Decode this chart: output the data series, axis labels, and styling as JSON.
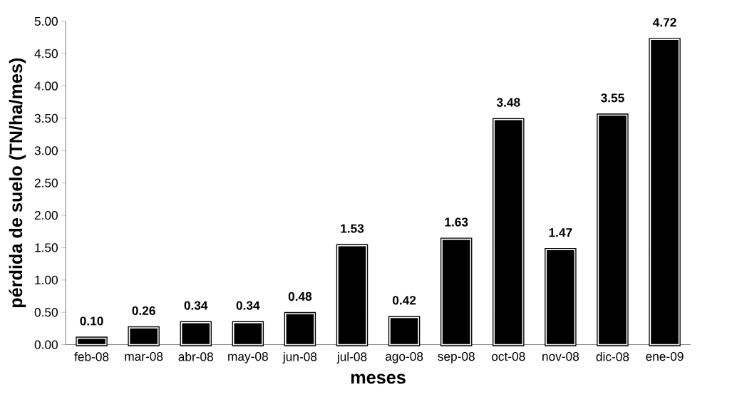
{
  "chart_data": {
    "type": "bar",
    "xlabel": "meses",
    "ylabel": "pérdida de suelo (TN/ha/mes)",
    "categories": [
      "feb-08",
      "mar-08",
      "abr-08",
      "may-08",
      "jun-08",
      "jul-08",
      "ago-08",
      "sep-08",
      "oct-08",
      "nov-08",
      "dic-08",
      "ene-09"
    ],
    "values": [
      0.1,
      0.26,
      0.34,
      0.34,
      0.48,
      1.53,
      0.42,
      1.63,
      3.48,
      1.47,
      3.55,
      4.72
    ],
    "color": "#000000",
    "ylim": [
      0,
      5
    ],
    "yticks": [
      {
        "value": 0,
        "label": "0.00"
      },
      {
        "value": 0.5,
        "label": "0.50"
      },
      {
        "value": 1,
        "label": "1.00"
      },
      {
        "value": 1.5,
        "label": "1.50"
      },
      {
        "value": 2,
        "label": "2.00"
      },
      {
        "value": 2.5,
        "label": "2.50"
      },
      {
        "value": 3,
        "label": "3.00"
      },
      {
        "value": 3.5,
        "label": "3.50"
      },
      {
        "value": 4,
        "label": "4.00"
      },
      {
        "value": 4.5,
        "label": "4.50"
      },
      {
        "value": 5,
        "label": "5.00"
      }
    ],
    "value_labels": [
      "0.10",
      "0.26",
      "0.34",
      "0.34",
      "0.48",
      "1.53",
      "0.42",
      "1.63",
      "3.48",
      "1.47",
      "3.55",
      "4.72"
    ]
  }
}
